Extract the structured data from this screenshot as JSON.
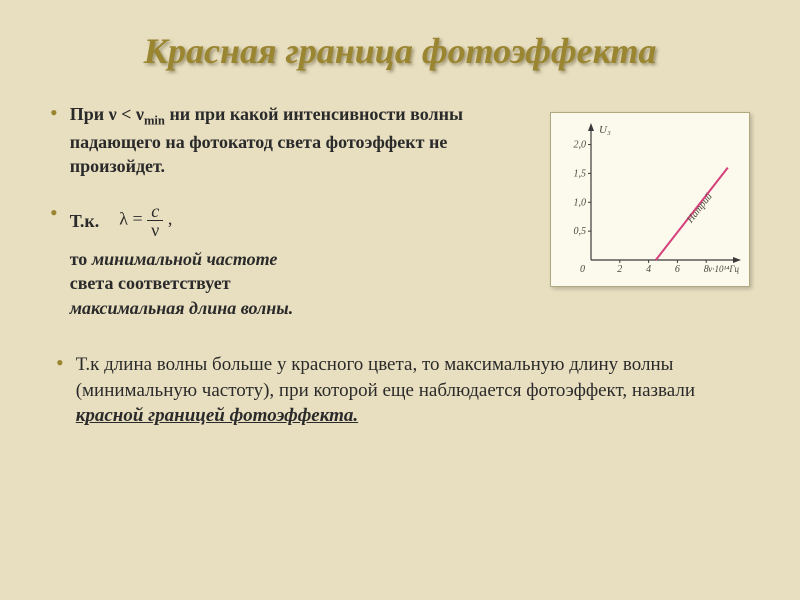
{
  "title": "Красная граница фотоэффекта",
  "bullets": {
    "b1_prefix": "При ",
    "b1_cond": "ν < ν",
    "b1_sub": "min",
    "b1_rest": " ни при какой интенсивности волны падающего на фотокатод света фотоэффект не произойдет.",
    "b2_tk": "Т.к.",
    "b2_lambda_eq": "λ =",
    "b2_num": "c",
    "b2_den": "ν",
    "b2_comma": ",",
    "b2_line2a": "то ",
    "b2_line2b": "минимальной частоте",
    "b2_line3a": "света соответствует",
    "b2_line3b": "максимальная длина волны.",
    "b3_a": "Т.к длина волны больше у красного цвета, то максимальную длину волны (минимальную частоту), при которой еще наблюдается фотоэффект, назвали ",
    "b3_b": "красной границей фотоэффекта."
  },
  "chart": {
    "type": "line",
    "background_color": "#fcf9ed",
    "axis_color": "#3a3a3a",
    "line_color": "#d53f7a",
    "tick_color": "#3a3a3a",
    "text_color": "#4a4a3a",
    "line_width": 2,
    "ylabel": "U₃",
    "xlabel": "ν·10¹⁴Гц",
    "y_ticks": [
      0.5,
      1.0,
      1.5,
      2.0
    ],
    "x_ticks": [
      2,
      4,
      6,
      8
    ],
    "y_tick_labels": [
      "0,5",
      "1,0",
      "1,5",
      "2,0"
    ],
    "x_tick_labels": [
      "2",
      "4",
      "6",
      "8"
    ],
    "ylim": [
      0,
      2.2
    ],
    "xlim": [
      0,
      10
    ],
    "data_x": [
      4.5,
      9.5
    ],
    "data_y": [
      0,
      1.6
    ],
    "series_label": "Натрий",
    "origin_label": "0"
  }
}
